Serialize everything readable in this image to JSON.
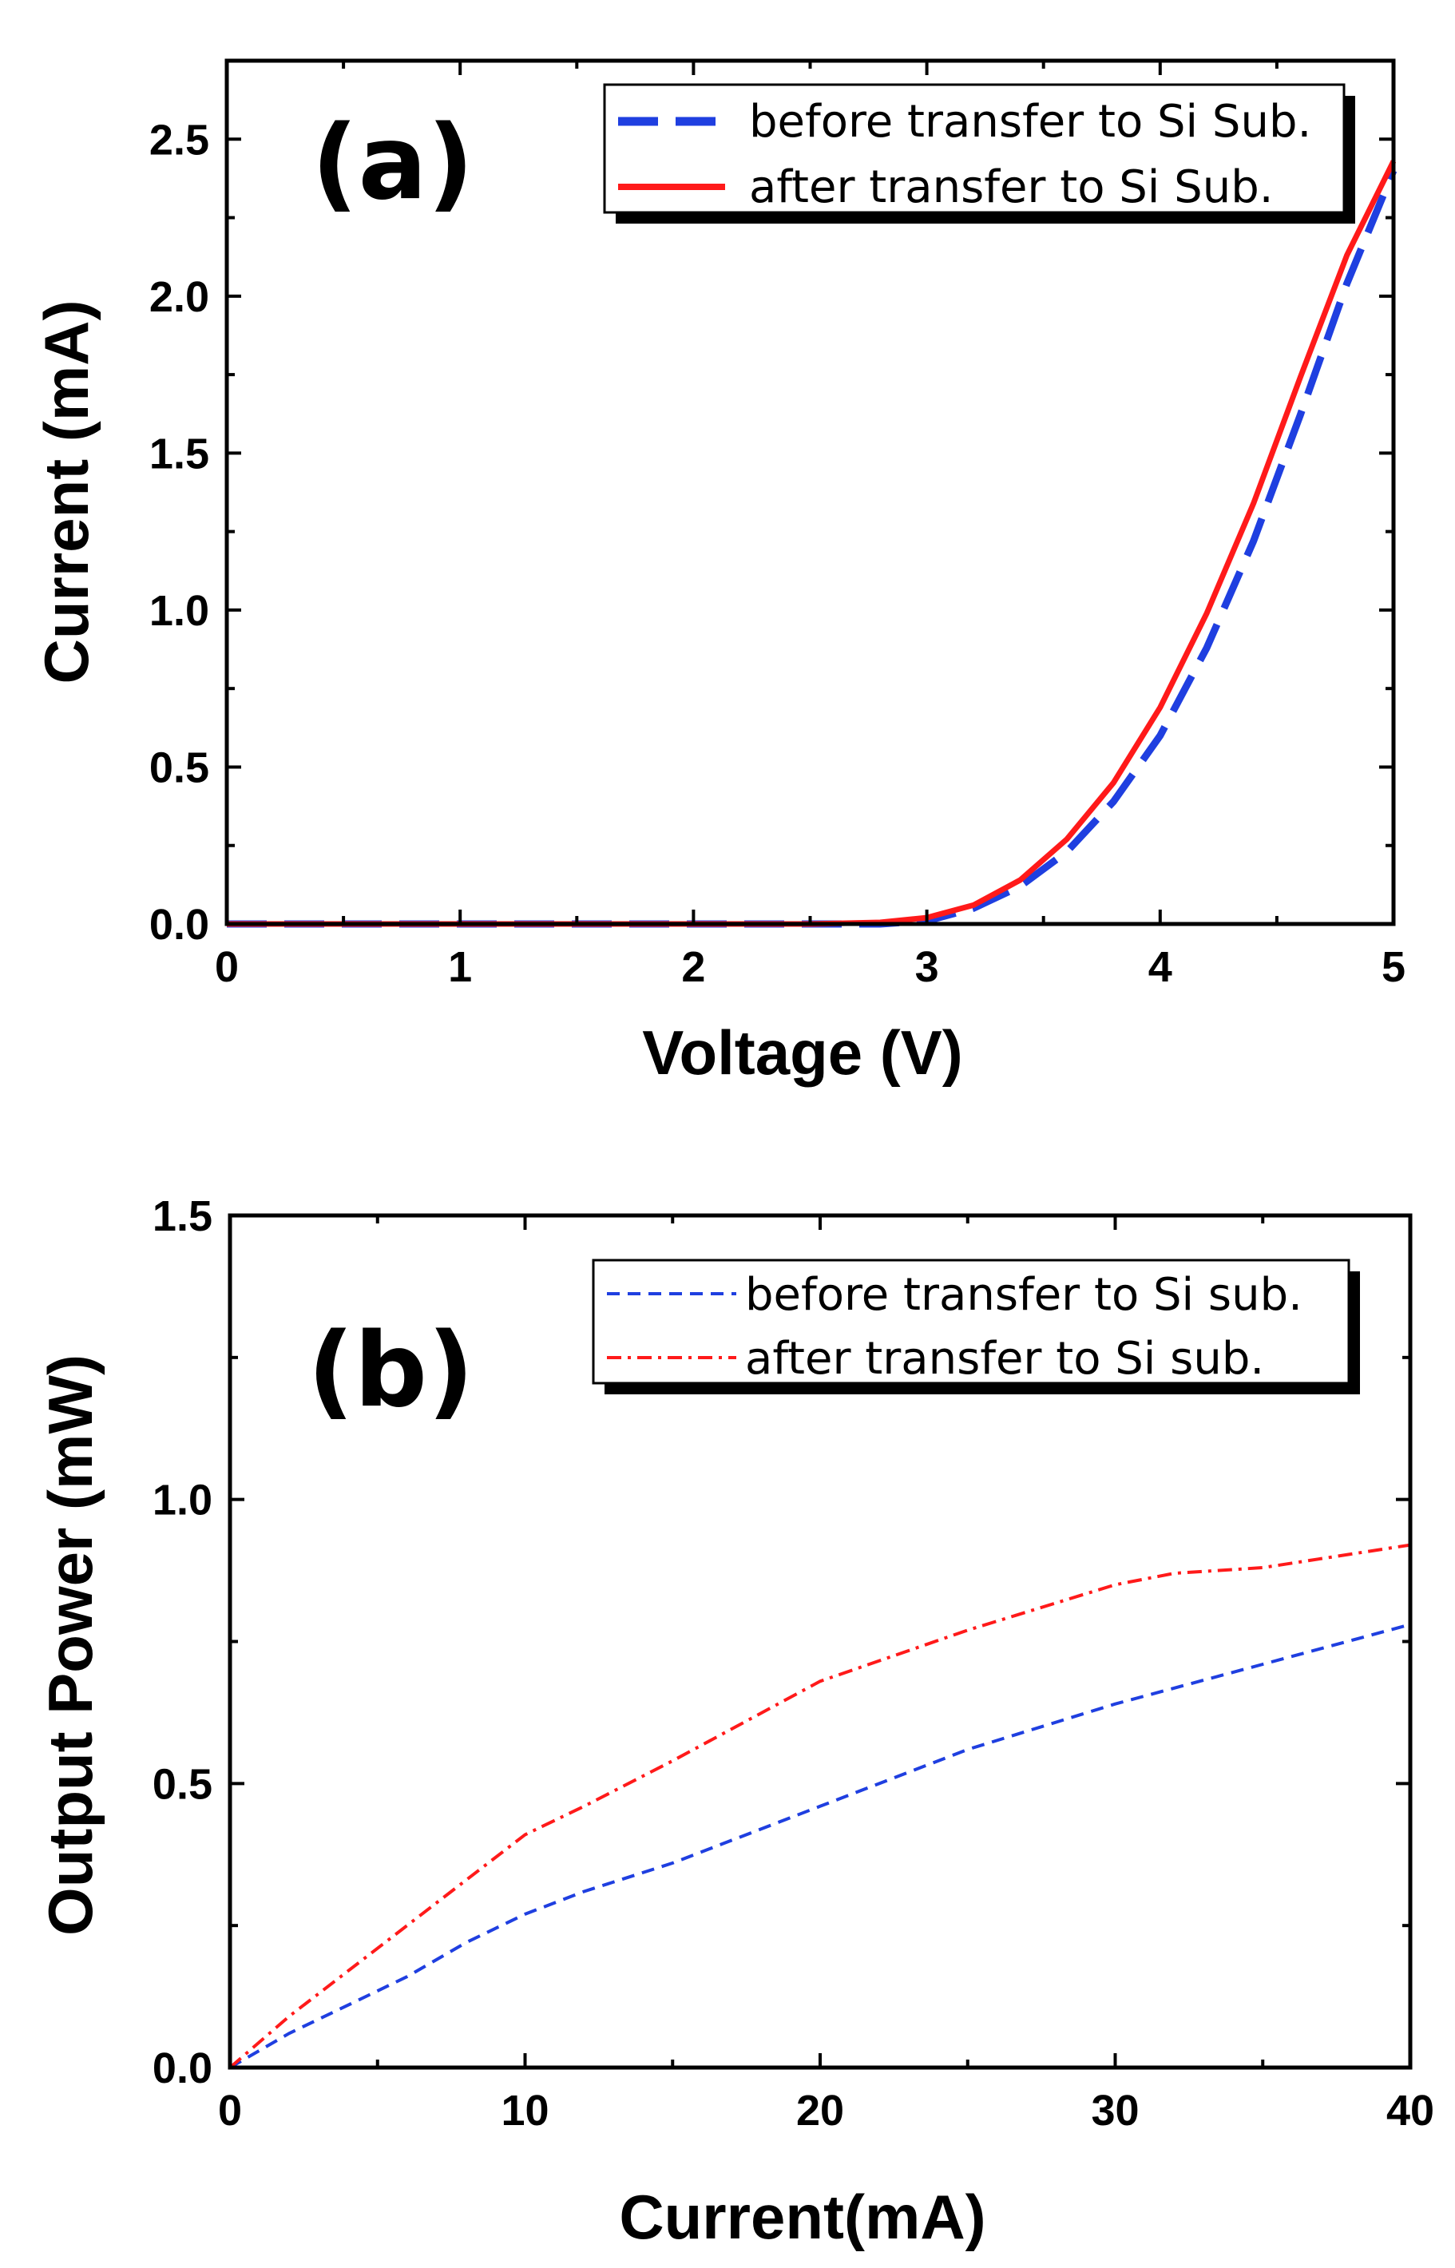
{
  "chart_data": [
    {
      "type": "line",
      "panel_label": "(a)",
      "title": "",
      "xlabel": "Voltage (V)",
      "ylabel": "Current (mA)",
      "xlim": [
        0,
        5
      ],
      "ylim": [
        0,
        2.75
      ],
      "xticks": [
        0,
        1,
        2,
        3,
        4,
        5
      ],
      "xtick_labels": [
        "0",
        "1",
        "2",
        "3",
        "4",
        "5"
      ],
      "yticks": [
        0.0,
        0.5,
        1.0,
        1.5,
        2.0,
        2.5
      ],
      "ytick_labels": [
        "0.0",
        "0.5",
        "1.0",
        "1.5",
        "2.0",
        "2.5"
      ],
      "grid": false,
      "legend_position": "top-right",
      "series": [
        {
          "name": "before transfer to Si Sub.",
          "color": "#1f3fe0",
          "style": "dashed",
          "x": [
            0,
            0.5,
            1.0,
            1.5,
            2.0,
            2.5,
            2.8,
            3.0,
            3.2,
            3.4,
            3.6,
            3.8,
            4.0,
            4.2,
            4.4,
            4.6,
            4.8,
            5.0
          ],
          "y": [
            0,
            0,
            0,
            0,
            0,
            0,
            0,
            0.01,
            0.05,
            0.12,
            0.23,
            0.39,
            0.6,
            0.88,
            1.22,
            1.62,
            2.04,
            2.4
          ]
        },
        {
          "name": "after transfer to Si Sub.",
          "color": "#ff1a1a",
          "style": "solid",
          "x": [
            0,
            0.5,
            1.0,
            1.5,
            2.0,
            2.5,
            2.8,
            3.0,
            3.2,
            3.4,
            3.6,
            3.8,
            4.0,
            4.2,
            4.4,
            4.6,
            4.8,
            5.0
          ],
          "y": [
            0,
            0,
            0,
            0,
            0,
            0,
            0.005,
            0.02,
            0.06,
            0.14,
            0.27,
            0.45,
            0.69,
            0.99,
            1.34,
            1.74,
            2.13,
            2.43
          ]
        }
      ]
    },
    {
      "type": "line",
      "panel_label": "(b)",
      "title": "",
      "xlabel": "Current(mA)",
      "ylabel": "Output Power (mW)",
      "xlim": [
        0,
        40
      ],
      "ylim": [
        0,
        1.5
      ],
      "xticks": [
        0,
        10,
        20,
        30,
        40
      ],
      "xtick_labels": [
        "0",
        "10",
        "20",
        "30",
        "40"
      ],
      "yticks": [
        0.0,
        0.5,
        1.0,
        1.5
      ],
      "ytick_labels": [
        "0.0",
        "0.5",
        "1.0",
        "1.5"
      ],
      "grid": false,
      "legend_position": "top-right",
      "series": [
        {
          "name": "before transfer to Si sub.",
          "color": "#1f3fe0",
          "style": "dashed",
          "x": [
            0,
            2,
            4,
            6,
            8,
            10,
            12,
            15,
            20,
            25,
            30,
            35,
            40
          ],
          "y": [
            0,
            0.06,
            0.11,
            0.16,
            0.22,
            0.27,
            0.31,
            0.36,
            0.46,
            0.56,
            0.64,
            0.71,
            0.78
          ]
        },
        {
          "name": "after transfer to Si sub.",
          "color": "#ff1a1a",
          "style": "dash-dot",
          "x": [
            0,
            2,
            4,
            6,
            8,
            10,
            12,
            15,
            20,
            25,
            30,
            32,
            35,
            40
          ],
          "y": [
            0,
            0.09,
            0.17,
            0.25,
            0.33,
            0.41,
            0.46,
            0.54,
            0.68,
            0.77,
            0.85,
            0.87,
            0.88,
            0.92
          ]
        }
      ]
    }
  ]
}
